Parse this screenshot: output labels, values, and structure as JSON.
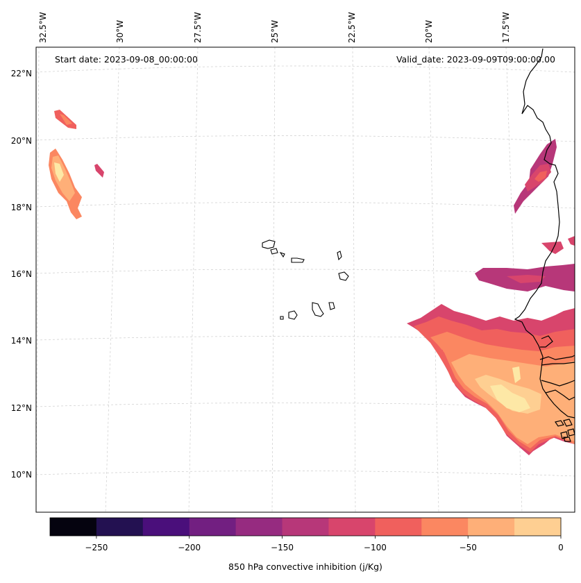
{
  "map": {
    "start_date": "Start date: 2023-09-08_00:00:00",
    "valid_date": "Valid_date: 2023-09-09T09:00:00.00",
    "lon_labels": [
      "32.5°W",
      "30°W",
      "27.5°W",
      "25°W",
      "22.5°W",
      "20°W",
      "17.5°W"
    ],
    "lat_labels": [
      "22°N",
      "20°N",
      "18°N",
      "16°N",
      "14°N",
      "12°N",
      "10°N"
    ],
    "region": "Cabo Verde and West African coast"
  },
  "colorbar": {
    "label": "850 hPa convective inhibition (j/Kg)",
    "ticks": [
      "−250",
      "−200",
      "−150",
      "−100",
      "−50",
      "0"
    ],
    "levels": [
      -275,
      -250,
      -225,
      -200,
      -175,
      -150,
      -125,
      -100,
      -75,
      -50,
      -25,
      0
    ],
    "colors": [
      "#05030f",
      "#231151",
      "#4a0f7b",
      "#721f81",
      "#962b80",
      "#b73779",
      "#d8456c",
      "#f0605d",
      "#fb8761",
      "#feaf78",
      "#fecf92",
      "#fde8a6"
    ]
  },
  "colors": {
    "coast": "#000000",
    "grid": "#cccccc",
    "frame": "#000000"
  }
}
